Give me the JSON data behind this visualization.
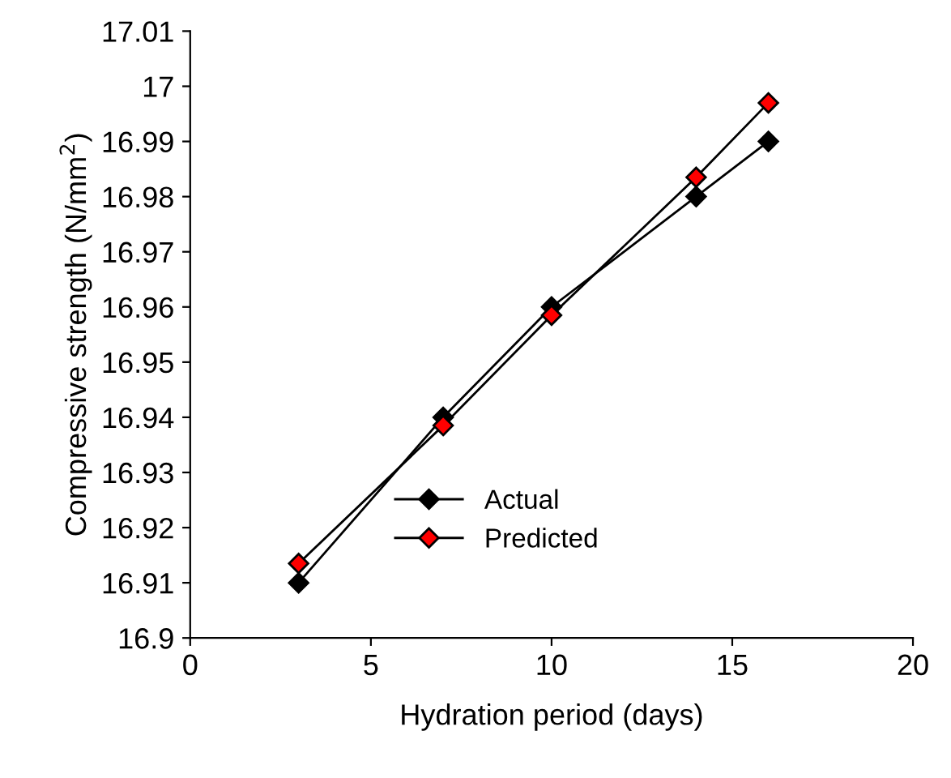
{
  "chart_data": {
    "type": "line",
    "xlabel": "Hydration period (days)",
    "ylabel": "Compressive strength (N/mm$^{2}$)",
    "x": [
      3,
      7,
      10,
      14,
      16
    ],
    "series": [
      {
        "name": "Actual",
        "color": "#000000",
        "values": [
          16.91,
          16.94,
          16.96,
          16.98,
          16.99
        ]
      },
      {
        "name": "Predicted",
        "color": "#ff0000",
        "values": [
          16.9135,
          16.9385,
          16.9585,
          16.9835,
          16.997
        ]
      }
    ],
    "xlim": [
      0,
      20
    ],
    "xticks": [
      0,
      5,
      10,
      15,
      20
    ],
    "ylim": [
      16.9,
      17.01
    ],
    "yticks": [
      16.9,
      16.91,
      16.92,
      16.93,
      16.94,
      16.95,
      16.96,
      16.97,
      16.98,
      16.99,
      17,
      17.01
    ],
    "marker": "diamond",
    "line_style": "solid",
    "legend": "bottom",
    "grid": false
  }
}
